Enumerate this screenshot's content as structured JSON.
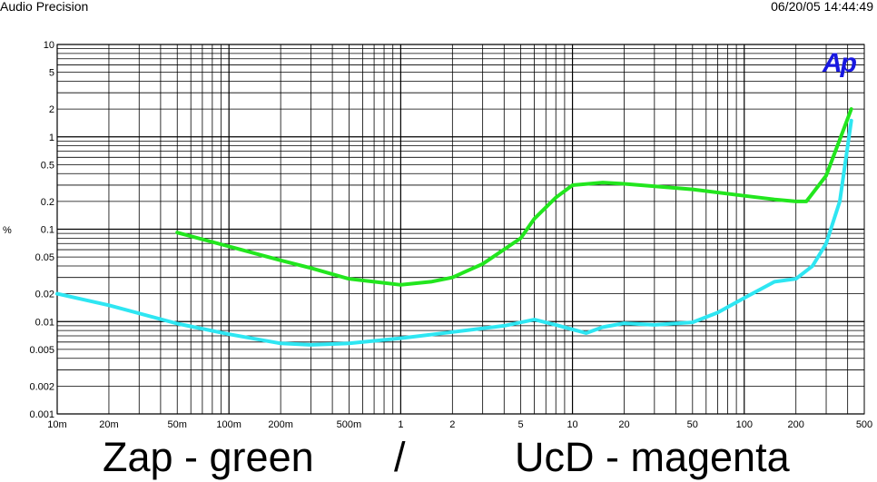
{
  "header": {
    "left": "Audio Precision",
    "right": "06/20/05 14:44:49"
  },
  "logo_text": "Ap",
  "caption": {
    "left": "Zap - green",
    "separator": "/",
    "right": "UcD - magenta"
  },
  "chart_data": {
    "type": "line",
    "title": "",
    "xlabel": "",
    "ylabel": "%",
    "x_scale": "log",
    "y_scale": "log",
    "xlim": [
      0.01,
      500
    ],
    "ylim": [
      0.001,
      10
    ],
    "grid": true,
    "x_ticks": [
      {
        "value": 0.01,
        "label": "10m"
      },
      {
        "value": 0.02,
        "label": "20m"
      },
      {
        "value": 0.05,
        "label": "50m"
      },
      {
        "value": 0.1,
        "label": "100m"
      },
      {
        "value": 0.2,
        "label": "200m"
      },
      {
        "value": 0.5,
        "label": "500m"
      },
      {
        "value": 1,
        "label": "1"
      },
      {
        "value": 2,
        "label": "2"
      },
      {
        "value": 5,
        "label": "5"
      },
      {
        "value": 10,
        "label": "10"
      },
      {
        "value": 20,
        "label": "20"
      },
      {
        "value": 50,
        "label": "50"
      },
      {
        "value": 100,
        "label": "100"
      },
      {
        "value": 200,
        "label": "200"
      },
      {
        "value": 500,
        "label": "500"
      }
    ],
    "y_ticks": [
      {
        "value": 10,
        "label": "10"
      },
      {
        "value": 5,
        "label": "5"
      },
      {
        "value": 2,
        "label": "2"
      },
      {
        "value": 1,
        "label": "1"
      },
      {
        "value": 0.5,
        "label": "0.5"
      },
      {
        "value": 0.2,
        "label": "0.2"
      },
      {
        "value": 0.1,
        "label": "0.1"
      },
      {
        "value": 0.05,
        "label": "0.05"
      },
      {
        "value": 0.02,
        "label": "0.02"
      },
      {
        "value": 0.01,
        "label": "0.01"
      },
      {
        "value": 0.005,
        "label": "0.005"
      },
      {
        "value": 0.002,
        "label": "0.002"
      },
      {
        "value": 0.001,
        "label": "0.001"
      }
    ],
    "series": [
      {
        "name": "Zap",
        "color": "#22e61e",
        "points": [
          [
            0.05,
            0.092
          ],
          [
            0.1,
            0.065
          ],
          [
            0.2,
            0.046
          ],
          [
            0.3,
            0.038
          ],
          [
            0.5,
            0.029
          ],
          [
            0.7,
            0.027
          ],
          [
            1,
            0.025
          ],
          [
            1.5,
            0.027
          ],
          [
            2,
            0.03
          ],
          [
            3,
            0.042
          ],
          [
            5,
            0.08
          ],
          [
            6,
            0.13
          ],
          [
            8,
            0.22
          ],
          [
            10,
            0.3
          ],
          [
            15,
            0.32
          ],
          [
            20,
            0.31
          ],
          [
            50,
            0.27
          ],
          [
            100,
            0.23
          ],
          [
            150,
            0.21
          ],
          [
            200,
            0.2
          ],
          [
            230,
            0.2
          ],
          [
            300,
            0.38
          ],
          [
            420,
            2.0
          ]
        ]
      },
      {
        "name": "UcD",
        "color": "#2ee6f2",
        "points": [
          [
            0.01,
            0.02
          ],
          [
            0.02,
            0.015
          ],
          [
            0.05,
            0.0095
          ],
          [
            0.1,
            0.0073
          ],
          [
            0.2,
            0.0058
          ],
          [
            0.3,
            0.0056
          ],
          [
            0.5,
            0.0058
          ],
          [
            1,
            0.0066
          ],
          [
            2,
            0.0077
          ],
          [
            4,
            0.009
          ],
          [
            6,
            0.0105
          ],
          [
            8,
            0.0092
          ],
          [
            12,
            0.0075
          ],
          [
            15,
            0.0087
          ],
          [
            20,
            0.0096
          ],
          [
            30,
            0.0092
          ],
          [
            50,
            0.0098
          ],
          [
            70,
            0.0125
          ],
          [
            100,
            0.018
          ],
          [
            150,
            0.027
          ],
          [
            200,
            0.029
          ],
          [
            250,
            0.04
          ],
          [
            300,
            0.07
          ],
          [
            360,
            0.2
          ],
          [
            420,
            1.5
          ]
        ]
      }
    ]
  }
}
